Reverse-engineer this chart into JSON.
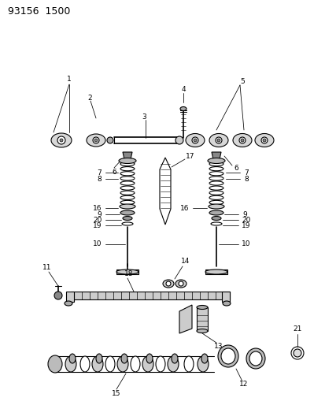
{
  "title": "93156  1500",
  "bg_color": "#ffffff",
  "fg_color": "#000000",
  "figsize": [
    4.14,
    5.33
  ],
  "dpi": 100
}
